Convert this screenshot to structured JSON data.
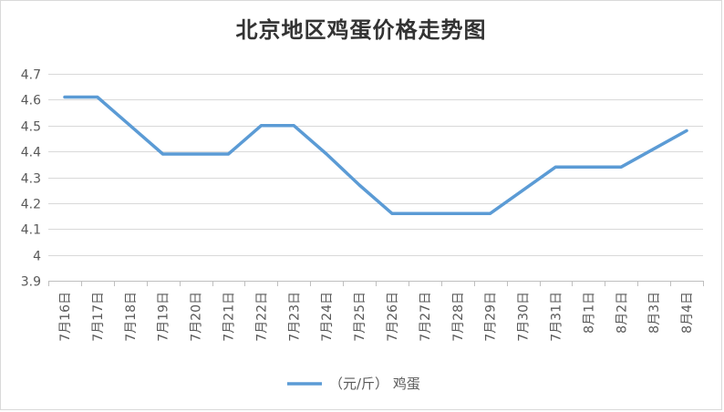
{
  "chart_data": {
    "type": "line",
    "title": "北京地区鸡蛋价格走势图",
    "categories": [
      "7月16日",
      "7月17日",
      "7月18日",
      "7月19日",
      "7月20日",
      "7月21日",
      "7月22日",
      "7月23日",
      "7月24日",
      "7月25日",
      "7月26日",
      "7月27日",
      "7月28日",
      "7月29日",
      "7月30日",
      "7月31日",
      "8月1日",
      "8月2日",
      "8月3日",
      "8月4日"
    ],
    "series": [
      {
        "name": "（元/斤） 鸡蛋",
        "color": "#5b9bd5",
        "values": [
          4.61,
          4.61,
          4.5,
          4.39,
          4.39,
          4.39,
          4.5,
          4.5,
          4.39,
          4.27,
          4.16,
          4.16,
          4.16,
          4.16,
          4.25,
          4.34,
          4.34,
          4.34,
          4.41,
          4.48
        ]
      }
    ],
    "yticks": [
      "3.9",
      "4",
      "4.1",
      "4.2",
      "4.3",
      "4.4",
      "4.5",
      "4.6",
      "4.7"
    ],
    "ylim": [
      3.9,
      4.7
    ],
    "grid": true,
    "legend_position": "bottom",
    "xlabel": "",
    "ylabel": ""
  }
}
